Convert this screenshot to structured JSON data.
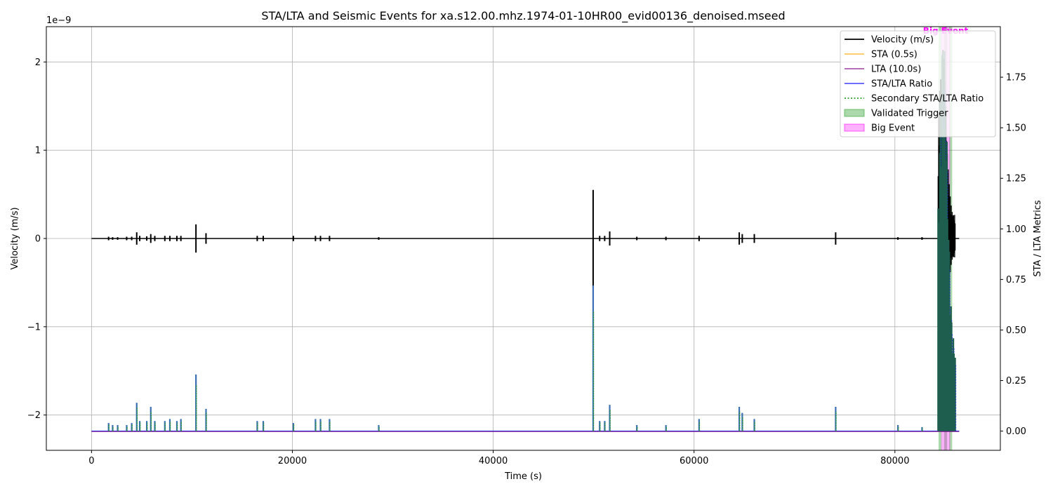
{
  "chart_data": {
    "type": "line",
    "title": "STA/LTA and Seismic Events for xa.s12.00.mhz.1974-01-10HR00_evid00136_denoised.mseed",
    "xlabel": "Time (s)",
    "ylabel": "Velocity (m/s)",
    "y2label": "STA / LTA Metrics",
    "y_scale_label": "1e−9",
    "xlim": [
      -4500,
      90500
    ],
    "ylim": [
      -2.4,
      2.4
    ],
    "y2lim": [
      -0.095,
      2.0
    ],
    "x_ticks": [
      0,
      20000,
      40000,
      60000,
      80000
    ],
    "x_tick_labels": [
      "0",
      "20000",
      "40000",
      "60000",
      "80000"
    ],
    "y_ticks": [
      -2,
      -1,
      0,
      1,
      2
    ],
    "y_tick_labels": [
      "−2",
      "−1",
      "0",
      "1",
      "2"
    ],
    "y2_ticks": [
      0.0,
      0.25,
      0.5,
      0.75,
      1.0,
      1.25,
      1.5,
      1.75
    ],
    "y2_tick_labels": [
      "0.00",
      "0.25",
      "0.50",
      "0.75",
      "1.00",
      "1.25",
      "1.50",
      "1.75"
    ],
    "grid": true,
    "legend_position": "top-right",
    "x_range": [
      0,
      86400
    ],
    "series": [
      {
        "name": "Velocity (m/s)",
        "color": "#000000",
        "style": "solid",
        "axis": "left"
      },
      {
        "name": "STA (0.5s)",
        "color": "#ffa500",
        "style": "solid",
        "axis": "right"
      },
      {
        "name": "LTA (10.0s)",
        "color": "#800080",
        "style": "solid",
        "axis": "right"
      },
      {
        "name": "STA/LTA Ratio",
        "color": "#0000ff",
        "style": "solid",
        "axis": "right"
      },
      {
        "name": "Secondary STA/LTA Ratio",
        "color": "#2ca02c",
        "style": "dotted",
        "axis": "right"
      },
      {
        "name": "Validated Trigger",
        "color": "#2ca02c",
        "style": "span",
        "axis": "x"
      },
      {
        "name": "Big Event",
        "color": "#ff00ff",
        "style": "span",
        "axis": "x"
      }
    ],
    "velocity_bursts": [
      [
        1700,
        0.02
      ],
      [
        2100,
        0.015
      ],
      [
        2600,
        0.015
      ],
      [
        3500,
        0.02
      ],
      [
        4000,
        0.02
      ],
      [
        4500,
        0.07
      ],
      [
        4800,
        0.03
      ],
      [
        5500,
        0.025
      ],
      [
        5900,
        0.05
      ],
      [
        6300,
        0.03
      ],
      [
        7300,
        0.03
      ],
      [
        7800,
        0.03
      ],
      [
        8500,
        0.03
      ],
      [
        8900,
        0.03
      ],
      [
        10400,
        0.16
      ],
      [
        11400,
        0.06
      ],
      [
        16500,
        0.03
      ],
      [
        17100,
        0.03
      ],
      [
        20100,
        0.03
      ],
      [
        22300,
        0.03
      ],
      [
        22800,
        0.03
      ],
      [
        23700,
        0.03
      ],
      [
        28600,
        0.015
      ],
      [
        49950,
        0.55
      ],
      [
        50600,
        0.03
      ],
      [
        51100,
        0.03
      ],
      [
        51600,
        0.08
      ],
      [
        54300,
        0.02
      ],
      [
        57200,
        0.02
      ],
      [
        60500,
        0.03
      ],
      [
        64500,
        0.07
      ],
      [
        64800,
        0.05
      ],
      [
        66000,
        0.05
      ],
      [
        74100,
        0.07
      ],
      [
        80300,
        0.015
      ],
      [
        82700,
        0.015
      ]
    ],
    "ratio_spikes": [
      [
        1700,
        0.04
      ],
      [
        2100,
        0.03
      ],
      [
        2600,
        0.03
      ],
      [
        3500,
        0.03
      ],
      [
        4000,
        0.04
      ],
      [
        4500,
        0.14
      ],
      [
        4800,
        0.05
      ],
      [
        5500,
        0.05
      ],
      [
        5900,
        0.12
      ],
      [
        6300,
        0.05
      ],
      [
        7300,
        0.05
      ],
      [
        7800,
        0.06
      ],
      [
        8500,
        0.05
      ],
      [
        8900,
        0.06
      ],
      [
        10400,
        0.28
      ],
      [
        11400,
        0.11
      ],
      [
        16500,
        0.05
      ],
      [
        17100,
        0.05
      ],
      [
        20100,
        0.04
      ],
      [
        22300,
        0.06
      ],
      [
        22800,
        0.06
      ],
      [
        23700,
        0.06
      ],
      [
        28600,
        0.03
      ],
      [
        49950,
        0.72
      ],
      [
        50600,
        0.05
      ],
      [
        51100,
        0.05
      ],
      [
        51600,
        0.13
      ],
      [
        54300,
        0.03
      ],
      [
        57200,
        0.03
      ],
      [
        60500,
        0.06
      ],
      [
        64500,
        0.12
      ],
      [
        64800,
        0.09
      ],
      [
        66000,
        0.06
      ],
      [
        74100,
        0.12
      ],
      [
        80300,
        0.03
      ],
      [
        82700,
        0.02
      ]
    ],
    "big_event": {
      "x_start": 84300,
      "x_end": 86000,
      "velocity_peak": 2.2,
      "ratio_peak": 1.98
    },
    "validated_trigger_spans": [
      [
        84350,
        84650
      ],
      [
        84900,
        85200
      ],
      [
        85400,
        85700
      ]
    ],
    "big_event_span": [
      84600,
      85500
    ],
    "annotation": "Big Event"
  }
}
